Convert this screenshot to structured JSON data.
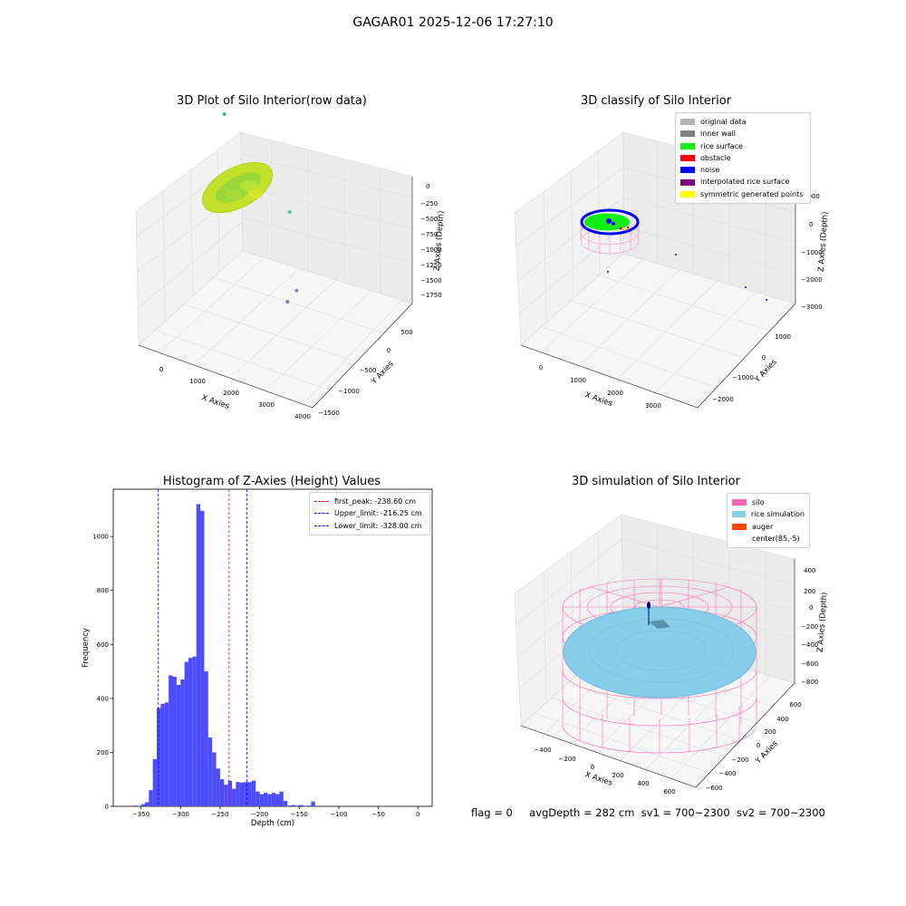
{
  "figure": {
    "suptitle": "GAGAR01 2025-12-06 17:27:10",
    "footer": {
      "flag": "flag = 0",
      "avg_depth": "avgDepth = 282 cm",
      "sv1": "sv1 = 700~2300",
      "sv2": "sv2 = 700~2300"
    }
  },
  "chart_data": [
    {
      "id": "raw",
      "type": "scatter",
      "title": "3D Plot of Silo Interior(row data)",
      "xlabel": "X Axies",
      "ylabel": "Y Axies",
      "zlabel": "Z Axies (Depth)",
      "xticks": [
        "0",
        "1000",
        "2000",
        "3000",
        "4000"
      ],
      "yticks": [
        "500",
        "0",
        "−500",
        "−1000",
        "−1500"
      ],
      "zticks": [
        "0",
        "−250",
        "−500",
        "−750",
        "−1000",
        "−1250",
        "−1500",
        "−1750"
      ],
      "cluster_color": "#c4e02a",
      "outliers": [
        {
          "x": -600,
          "y": 1850,
          "z": -1700,
          "color": "#2fbf86"
        },
        {
          "x": 1400,
          "y": 1750,
          "z": -900,
          "color": "#4fc89a"
        },
        {
          "x": 3700,
          "y": 100,
          "z": -1100,
          "color": "#8a82c0"
        },
        {
          "x": 4050,
          "y": -380,
          "z": -1250,
          "color": "#7f72b0"
        }
      ]
    },
    {
      "id": "classify",
      "type": "scatter",
      "title": "3D classify of Silo Interior",
      "xlabel": "X Axies",
      "ylabel": "Y Axies",
      "zlabel": "Z Axies (Depth)",
      "xticks": [
        "0",
        "1000",
        "2000",
        "3000"
      ],
      "yticks": [
        "1000",
        "0",
        "−1000",
        "−2000"
      ],
      "zticks": [
        "1000",
        "0",
        "−1000",
        "−2000",
        "−3000"
      ],
      "legend": [
        {
          "label": "original data",
          "color": "#b3b3b3"
        },
        {
          "label": "inner wall",
          "color": "#808080"
        },
        {
          "label": "rice surface",
          "color": "#12ee12"
        },
        {
          "label": "obstacle",
          "color": "#ff0000"
        },
        {
          "label": "noise",
          "color": "#0000ff"
        },
        {
          "label": "interpolated rice surface",
          "color": "#800080"
        },
        {
          "label": "symmetric generated points",
          "color": "#ffff00"
        }
      ]
    },
    {
      "id": "histogram",
      "type": "bar",
      "title": "Histogram of Z-Axies (Height) Values",
      "xlabel": "Depth (cm)",
      "ylabel": "Frequency",
      "xlim": [
        -385,
        18
      ],
      "ylim": [
        0,
        1175
      ],
      "xticks": [
        -350,
        -300,
        -250,
        -200,
        -150,
        -100,
        -50,
        0
      ],
      "xtick_labels": [
        "−350",
        "−300",
        "−250",
        "−200",
        "−150",
        "−100",
        "−50",
        "0"
      ],
      "yticks": [
        0,
        200,
        400,
        600,
        800,
        1000
      ],
      "ytick_labels": [
        "0",
        "200",
        "400",
        "600",
        "800",
        "1000"
      ],
      "bar_color": "#4d4dff",
      "bin_start": -360,
      "bin_width": 5,
      "values": [
        3,
        2,
        8,
        15,
        60,
        175,
        365,
        380,
        385,
        485,
        480,
        450,
        470,
        535,
        550,
        555,
        1120,
        1095,
        500,
        255,
        200,
        140,
        100,
        80,
        95,
        65,
        90,
        88,
        90,
        90,
        95,
        55,
        45,
        50,
        45,
        50,
        45,
        55,
        20,
        3,
        5,
        3,
        5,
        2,
        3,
        18
      ],
      "lines": [
        {
          "label": "first_peak: -238.60 cm",
          "value": -238.6,
          "color": "#ff0000"
        },
        {
          "label": "Upper_limit: -216.25 cm",
          "value": -216.25,
          "color": "#0000ff"
        },
        {
          "label": "Lower_limit: -328.00 cm",
          "value": -328.0,
          "color": "#0000ff"
        }
      ]
    },
    {
      "id": "simulation",
      "type": "scatter",
      "title": "3D simulation of Silo Interior",
      "xlabel": "X Axies",
      "ylabel": "Y Axies",
      "zlabel": "Z Axies (Depth)",
      "xticks": [
        "−400",
        "−200",
        "0",
        "200",
        "400",
        "600"
      ],
      "yticks": [
        "600",
        "400",
        "200",
        "0",
        "−200",
        "−400",
        "−600"
      ],
      "zticks": [
        "400",
        "200",
        "0",
        "−200",
        "−400",
        "−600",
        "−800"
      ],
      "legend": [
        {
          "label": "silo",
          "color": "#ff69b4"
        },
        {
          "label": "rice simulation",
          "color": "#87ceeb"
        },
        {
          "label": "auger",
          "color": "#ff4500"
        },
        {
          "label": "center(85,-5)",
          "color": "#ffffff"
        }
      ]
    }
  ]
}
